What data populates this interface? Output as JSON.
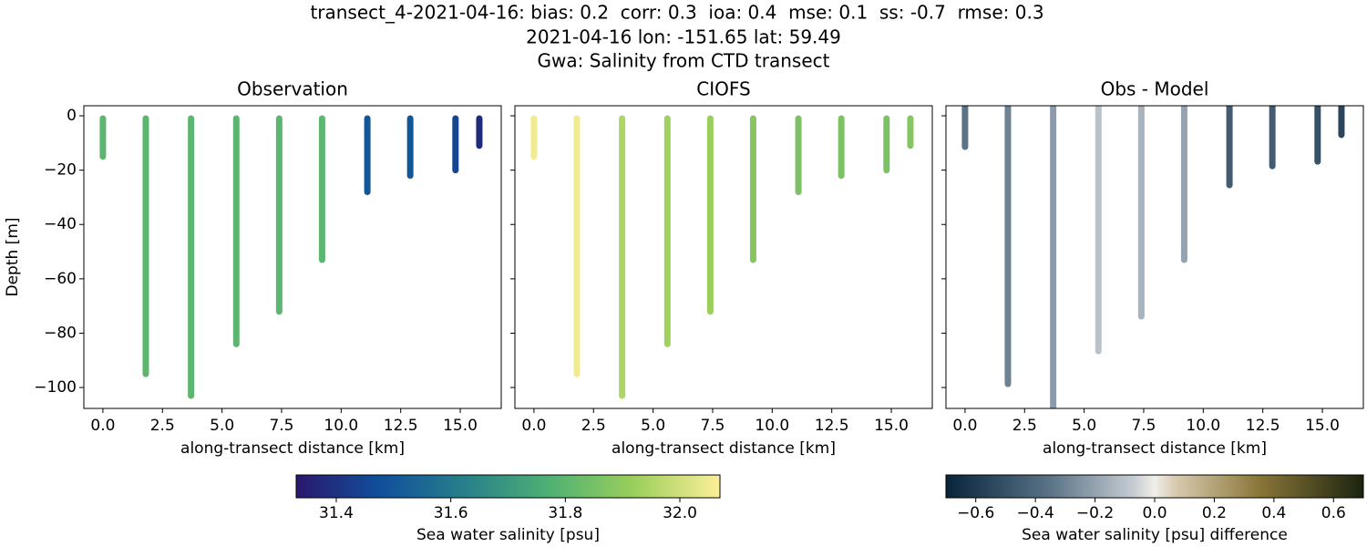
{
  "title_lines": [
    "transect_4-2021-04-16: bias: 0.2  corr: 0.3  ioa: 0.4  mse: 0.1  ss: -0.7  rmse: 0.3",
    "2021-04-16 lon: -151.65 lat: 59.49",
    "Gwa: Salinity from CTD transect"
  ],
  "chart_data": [
    {
      "type": "scatter",
      "title": "Observation",
      "xlabel": "along-transect distance [km]",
      "ylabel": "Depth [m]",
      "colormap": "haline",
      "show_yticklabels": true,
      "x": [
        0,
        1.8,
        3.7,
        5.6,
        7.4,
        9.2,
        11.1,
        12.9,
        14.8,
        15.8
      ],
      "depth_top": [
        -1,
        -1,
        -1,
        -1,
        -1,
        -1,
        -1,
        -1,
        -1,
        -1
      ],
      "depth_bottom": [
        -15,
        -95,
        -103,
        -84,
        -72,
        -53,
        -28,
        -22,
        -20,
        -11
      ],
      "values": [
        31.8,
        31.8,
        31.8,
        31.8,
        31.8,
        31.8,
        31.5,
        31.5,
        31.45,
        31.38
      ],
      "xlim": [
        -0.8,
        16.72
      ],
      "ylim": [
        -107.7,
        3.7
      ],
      "xticks": [
        {
          "value": 0,
          "label": "0.0"
        },
        2.5,
        {
          "value": 5,
          "label": "5.0"
        },
        7.5,
        {
          "value": 10,
          "label": "10.0"
        },
        12.5,
        {
          "value": 15,
          "label": "15.0"
        }
      ],
      "yticks": [
        0,
        {
          "value": -20,
          "label": "−20"
        },
        {
          "value": -40,
          "label": "−40"
        },
        {
          "value": -60,
          "label": "−60"
        },
        {
          "value": -80,
          "label": "−80"
        },
        {
          "value": -100,
          "label": "−100"
        }
      ]
    },
    {
      "type": "scatter",
      "title": "CIOFS",
      "xlabel": "along-transect distance [km]",
      "colormap": "haline",
      "show_yticklabels": false,
      "x": [
        0,
        1.8,
        3.7,
        5.6,
        7.4,
        9.2,
        11.1,
        12.9,
        14.8,
        15.8
      ],
      "depth_top": [
        -1,
        -1,
        -1,
        -1,
        -1,
        -1,
        -1,
        -1,
        -1,
        -1
      ],
      "depth_bottom": [
        -15,
        -95,
        -103,
        -84,
        -72,
        -53,
        -28,
        -22,
        -20,
        -11
      ],
      "values": [
        32.05,
        32.05,
        31.95,
        31.93,
        31.92,
        31.88,
        31.86,
        31.86,
        31.86,
        31.88
      ],
      "xlim": [
        -0.8,
        16.72
      ],
      "ylim": [
        -107.7,
        3.7
      ],
      "xticks": [
        {
          "value": 0,
          "label": "0.0"
        },
        2.5,
        {
          "value": 5,
          "label": "5.0"
        },
        7.5,
        {
          "value": 10,
          "label": "10.0"
        },
        12.5,
        {
          "value": 15,
          "label": "15.0"
        }
      ],
      "yticks": [
        0,
        -20,
        -40,
        -60,
        -80,
        -100
      ]
    },
    {
      "type": "scatter",
      "title": "Obs - Model",
      "xlabel": "along-transect distance [km]",
      "colormap": "diff",
      "show_yticklabels": false,
      "x": [
        0,
        1.8,
        3.7,
        5.6,
        7.4,
        9.2,
        11.1,
        12.9,
        14.8,
        15.8
      ],
      "depth_top": [
        3.7,
        3.7,
        3.7,
        3.7,
        3.7,
        3.7,
        3.7,
        3.7,
        3.7,
        3.7
      ],
      "depth_bottom": [
        -11.4,
        -98.7,
        -108,
        -86.6,
        -73.8,
        -53,
        -25.5,
        -18.5,
        -16.8,
        -7
      ],
      "values": [
        -0.35,
        -0.3,
        -0.22,
        -0.1,
        -0.15,
        -0.2,
        -0.45,
        -0.45,
        -0.5,
        -0.55
      ],
      "xlim": [
        -0.8,
        16.72
      ],
      "ylim": [
        -107.7,
        3.7
      ],
      "xticks": [
        {
          "value": 0,
          "label": "0.0"
        },
        2.5,
        {
          "value": 5,
          "label": "5.0"
        },
        7.5,
        {
          "value": 10,
          "label": "10.0"
        },
        12.5,
        {
          "value": 15,
          "label": "15.0"
        }
      ],
      "yticks": [
        0,
        -20,
        -40,
        -60,
        -80,
        -100
      ]
    }
  ],
  "colorbars": [
    {
      "colormap": "haline",
      "label": "Sea water salinity [psu]",
      "lim": [
        31.33,
        32.07
      ],
      "ticks": [
        31.4,
        31.6,
        31.8,
        {
          "value": 32,
          "label": "32.0"
        }
      ]
    },
    {
      "colormap": "diff",
      "label": "Sea water salinity [psu] difference",
      "lim": [
        -0.7,
        0.7
      ],
      "ticks": [
        {
          "value": -0.6,
          "label": "−0.6"
        },
        {
          "value": -0.4,
          "label": "−0.4"
        },
        {
          "value": -0.2,
          "label": "−0.2"
        },
        {
          "value": 0,
          "label": "0.0"
        },
        0.2,
        0.4,
        0.6
      ]
    }
  ]
}
